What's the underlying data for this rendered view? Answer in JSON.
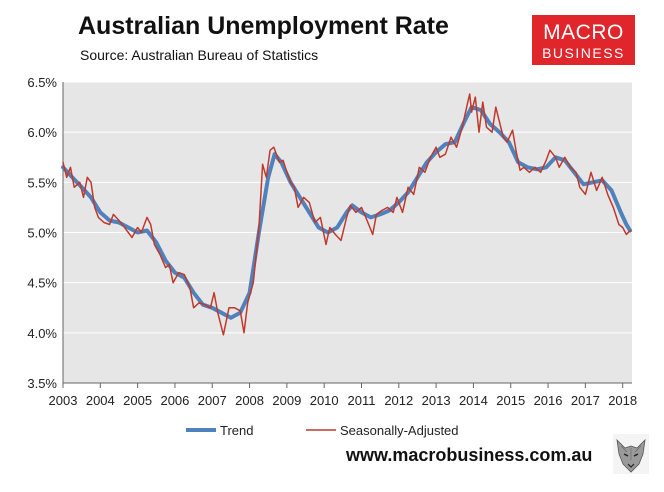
{
  "header": {
    "title": "Australian Unemployment Rate",
    "subtitle": "Source: Australian Bureau of Statistics"
  },
  "logo": {
    "line1": "MACRO",
    "line2": "BUSINESS",
    "background": "#e0252b"
  },
  "footer": {
    "url": "www.macrobusiness.com.au"
  },
  "chart_data": {
    "type": "line",
    "title": "Australian Unemployment Rate",
    "xlabel": "",
    "ylabel": "",
    "xlim": [
      2003.0,
      2018.25
    ],
    "ylim": [
      3.5,
      6.5
    ],
    "y_ticks": [
      "3.5%",
      "4.0%",
      "4.5%",
      "5.0%",
      "5.5%",
      "6.0%",
      "6.5%"
    ],
    "x_ticks": [
      "2003",
      "2004",
      "2005",
      "2006",
      "2007",
      "2008",
      "2009",
      "2010",
      "2011",
      "2012",
      "2013",
      "2014",
      "2015",
      "2016",
      "2017",
      "2018"
    ],
    "grid": "horizontal",
    "plot_background": "#e6e6e6",
    "legend_position": "bottom",
    "series": [
      {
        "name": "Trend",
        "color": "#4f81bd",
        "points": [
          [
            2003.0,
            5.65
          ],
          [
            2003.25,
            5.55
          ],
          [
            2003.5,
            5.45
          ],
          [
            2003.75,
            5.35
          ],
          [
            2004.0,
            5.2
          ],
          [
            2004.25,
            5.12
          ],
          [
            2004.5,
            5.1
          ],
          [
            2004.75,
            5.05
          ],
          [
            2005.0,
            5.0
          ],
          [
            2005.25,
            5.02
          ],
          [
            2005.5,
            4.9
          ],
          [
            2005.75,
            4.72
          ],
          [
            2006.0,
            4.6
          ],
          [
            2006.25,
            4.55
          ],
          [
            2006.5,
            4.4
          ],
          [
            2006.75,
            4.28
          ],
          [
            2007.0,
            4.25
          ],
          [
            2007.25,
            4.2
          ],
          [
            2007.5,
            4.15
          ],
          [
            2007.75,
            4.2
          ],
          [
            2008.0,
            4.4
          ],
          [
            2008.25,
            5.0
          ],
          [
            2008.5,
            5.55
          ],
          [
            2008.67,
            5.78
          ],
          [
            2008.85,
            5.7
          ],
          [
            2009.1,
            5.5
          ],
          [
            2009.35,
            5.35
          ],
          [
            2009.6,
            5.2
          ],
          [
            2009.85,
            5.05
          ],
          [
            2010.1,
            5.0
          ],
          [
            2010.35,
            5.05
          ],
          [
            2010.6,
            5.2
          ],
          [
            2010.75,
            5.27
          ],
          [
            2011.0,
            5.2
          ],
          [
            2011.25,
            5.15
          ],
          [
            2011.5,
            5.18
          ],
          [
            2011.75,
            5.22
          ],
          [
            2012.0,
            5.3
          ],
          [
            2012.25,
            5.4
          ],
          [
            2012.5,
            5.55
          ],
          [
            2012.75,
            5.7
          ],
          [
            2013.0,
            5.8
          ],
          [
            2013.25,
            5.88
          ],
          [
            2013.5,
            5.9
          ],
          [
            2013.75,
            6.1
          ],
          [
            2013.95,
            6.25
          ],
          [
            2014.2,
            6.22
          ],
          [
            2014.45,
            6.08
          ],
          [
            2014.7,
            6.0
          ],
          [
            2014.95,
            5.9
          ],
          [
            2015.2,
            5.7
          ],
          [
            2015.45,
            5.65
          ],
          [
            2015.7,
            5.63
          ],
          [
            2015.95,
            5.65
          ],
          [
            2016.2,
            5.75
          ],
          [
            2016.45,
            5.72
          ],
          [
            2016.7,
            5.6
          ],
          [
            2016.95,
            5.48
          ],
          [
            2017.2,
            5.5
          ],
          [
            2017.45,
            5.52
          ],
          [
            2017.7,
            5.42
          ],
          [
            2017.95,
            5.2
          ],
          [
            2018.1,
            5.08
          ],
          [
            2018.2,
            5.02
          ]
        ]
      },
      {
        "name": "Seasonally-Adjusted",
        "color": "#c0392b",
        "points": [
          [
            2003.0,
            5.7
          ],
          [
            2003.1,
            5.55
          ],
          [
            2003.2,
            5.65
          ],
          [
            2003.3,
            5.45
          ],
          [
            2003.45,
            5.5
          ],
          [
            2003.55,
            5.35
          ],
          [
            2003.65,
            5.55
          ],
          [
            2003.75,
            5.5
          ],
          [
            2003.85,
            5.25
          ],
          [
            2003.95,
            5.15
          ],
          [
            2004.1,
            5.1
          ],
          [
            2004.25,
            5.08
          ],
          [
            2004.35,
            5.18
          ],
          [
            2004.5,
            5.12
          ],
          [
            2004.65,
            5.05
          ],
          [
            2004.75,
            5.0
          ],
          [
            2004.85,
            4.95
          ],
          [
            2005.0,
            5.05
          ],
          [
            2005.1,
            5.0
          ],
          [
            2005.25,
            5.15
          ],
          [
            2005.35,
            5.08
          ],
          [
            2005.45,
            4.88
          ],
          [
            2005.6,
            4.78
          ],
          [
            2005.75,
            4.65
          ],
          [
            2005.85,
            4.68
          ],
          [
            2005.95,
            4.5
          ],
          [
            2006.1,
            4.6
          ],
          [
            2006.25,
            4.58
          ],
          [
            2006.4,
            4.45
          ],
          [
            2006.5,
            4.25
          ],
          [
            2006.65,
            4.3
          ],
          [
            2006.8,
            4.28
          ],
          [
            2006.95,
            4.25
          ],
          [
            2007.05,
            4.4
          ],
          [
            2007.15,
            4.2
          ],
          [
            2007.3,
            3.98
          ],
          [
            2007.45,
            4.25
          ],
          [
            2007.6,
            4.25
          ],
          [
            2007.75,
            4.22
          ],
          [
            2007.85,
            4.0
          ],
          [
            2007.95,
            4.3
          ],
          [
            2008.1,
            4.5
          ],
          [
            2008.25,
            5.05
          ],
          [
            2008.35,
            5.68
          ],
          [
            2008.45,
            5.55
          ],
          [
            2008.55,
            5.82
          ],
          [
            2008.65,
            5.85
          ],
          [
            2008.8,
            5.7
          ],
          [
            2008.9,
            5.72
          ],
          [
            2009.0,
            5.6
          ],
          [
            2009.1,
            5.5
          ],
          [
            2009.2,
            5.45
          ],
          [
            2009.3,
            5.25
          ],
          [
            2009.45,
            5.35
          ],
          [
            2009.6,
            5.3
          ],
          [
            2009.75,
            5.1
          ],
          [
            2009.9,
            5.15
          ],
          [
            2010.05,
            4.88
          ],
          [
            2010.15,
            5.05
          ],
          [
            2010.3,
            4.98
          ],
          [
            2010.45,
            4.92
          ],
          [
            2010.6,
            5.15
          ],
          [
            2010.7,
            5.27
          ],
          [
            2010.85,
            5.2
          ],
          [
            2011.0,
            5.25
          ],
          [
            2011.15,
            5.12
          ],
          [
            2011.3,
            4.98
          ],
          [
            2011.4,
            5.18
          ],
          [
            2011.55,
            5.22
          ],
          [
            2011.7,
            5.25
          ],
          [
            2011.85,
            5.2
          ],
          [
            2011.95,
            5.35
          ],
          [
            2012.1,
            5.2
          ],
          [
            2012.25,
            5.45
          ],
          [
            2012.4,
            5.38
          ],
          [
            2012.55,
            5.65
          ],
          [
            2012.7,
            5.6
          ],
          [
            2012.85,
            5.75
          ],
          [
            2013.0,
            5.85
          ],
          [
            2013.1,
            5.75
          ],
          [
            2013.25,
            5.78
          ],
          [
            2013.4,
            5.95
          ],
          [
            2013.55,
            5.85
          ],
          [
            2013.7,
            6.05
          ],
          [
            2013.85,
            6.3
          ],
          [
            2013.9,
            6.38
          ],
          [
            2013.95,
            6.2
          ],
          [
            2014.05,
            6.35
          ],
          [
            2014.15,
            6.0
          ],
          [
            2014.25,
            6.3
          ],
          [
            2014.35,
            6.05
          ],
          [
            2014.5,
            6.0
          ],
          [
            2014.6,
            6.25
          ],
          [
            2014.7,
            6.1
          ],
          [
            2014.8,
            5.95
          ],
          [
            2014.9,
            5.9
          ],
          [
            2015.05,
            6.02
          ],
          [
            2015.15,
            5.8
          ],
          [
            2015.25,
            5.62
          ],
          [
            2015.35,
            5.65
          ],
          [
            2015.5,
            5.6
          ],
          [
            2015.65,
            5.65
          ],
          [
            2015.8,
            5.6
          ],
          [
            2015.95,
            5.72
          ],
          [
            2016.05,
            5.82
          ],
          [
            2016.2,
            5.75
          ],
          [
            2016.3,
            5.65
          ],
          [
            2016.45,
            5.75
          ],
          [
            2016.6,
            5.65
          ],
          [
            2016.75,
            5.6
          ],
          [
            2016.85,
            5.45
          ],
          [
            2017.0,
            5.38
          ],
          [
            2017.15,
            5.6
          ],
          [
            2017.3,
            5.42
          ],
          [
            2017.45,
            5.55
          ],
          [
            2017.6,
            5.38
          ],
          [
            2017.75,
            5.25
          ],
          [
            2017.9,
            5.08
          ],
          [
            2018.0,
            5.05
          ],
          [
            2018.1,
            4.98
          ],
          [
            2018.2,
            5.02
          ]
        ]
      }
    ]
  }
}
